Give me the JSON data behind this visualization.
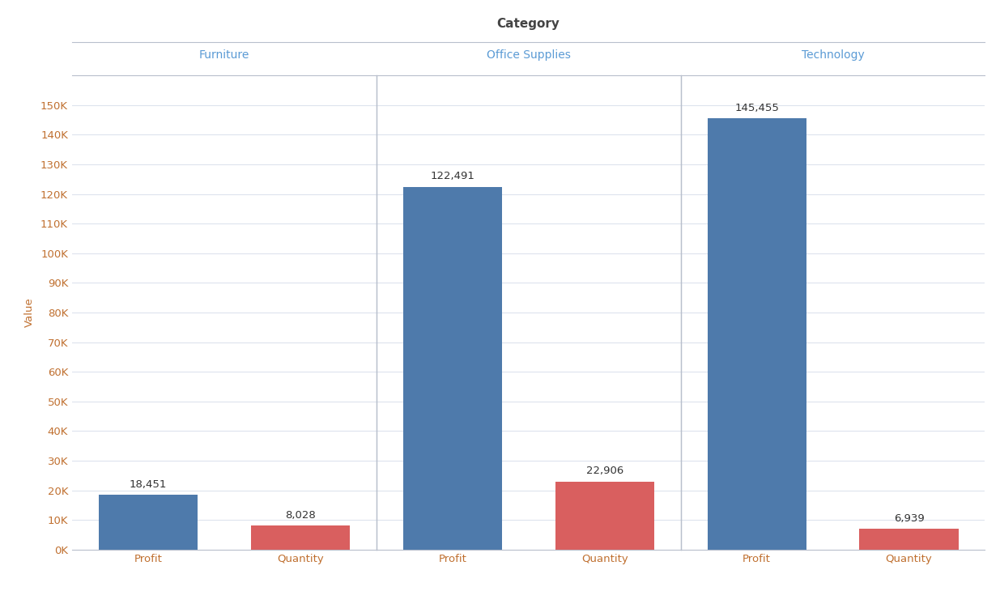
{
  "categories": [
    "Furniture",
    "Office Supplies",
    "Technology"
  ],
  "measures": [
    "Profit",
    "Quantity"
  ],
  "values": {
    "Furniture": {
      "Profit": 18451,
      "Quantity": 8028
    },
    "Office Supplies": {
      "Profit": 122491,
      "Quantity": 22906
    },
    "Technology": {
      "Profit": 145455,
      "Quantity": 6939
    }
  },
  "labels": {
    "Furniture": {
      "Profit": "18,451",
      "Quantity": "8,028"
    },
    "Office Supplies": {
      "Profit": "122,491",
      "Quantity": "22,906"
    },
    "Technology": {
      "Profit": "145,455",
      "Quantity": "6,939"
    }
  },
  "bar_colors": {
    "Profit": "#4e7aab",
    "Quantity": "#d95f5f"
  },
  "title": "Category",
  "ylabel": "Value",
  "ylim": [
    0,
    160000
  ],
  "yticks": [
    0,
    10000,
    20000,
    30000,
    40000,
    50000,
    60000,
    70000,
    80000,
    90000,
    100000,
    110000,
    120000,
    130000,
    140000,
    150000
  ],
  "ytick_labels": [
    "0K",
    "10K",
    "20K",
    "30K",
    "40K",
    "50K",
    "60K",
    "70K",
    "80K",
    "90K",
    "100K",
    "110K",
    "120K",
    "130K",
    "140K",
    "150K"
  ],
  "background_color": "#ffffff",
  "grid_color": "#dde3ed",
  "panel_divider_color": "#b8bfcc",
  "title_color": "#444444",
  "category_label_color": "#5b9bd5",
  "axis_label_color": "#c07030",
  "tick_color": "#c07030",
  "value_label_color": "#333333",
  "bar_label_fontsize": 9.5,
  "axis_label_fontsize": 9.5,
  "category_label_fontsize": 10,
  "title_fontsize": 11,
  "bar_width": 0.65,
  "x_positions": [
    0.5,
    1.5
  ],
  "xlim": [
    0.0,
    2.0
  ]
}
